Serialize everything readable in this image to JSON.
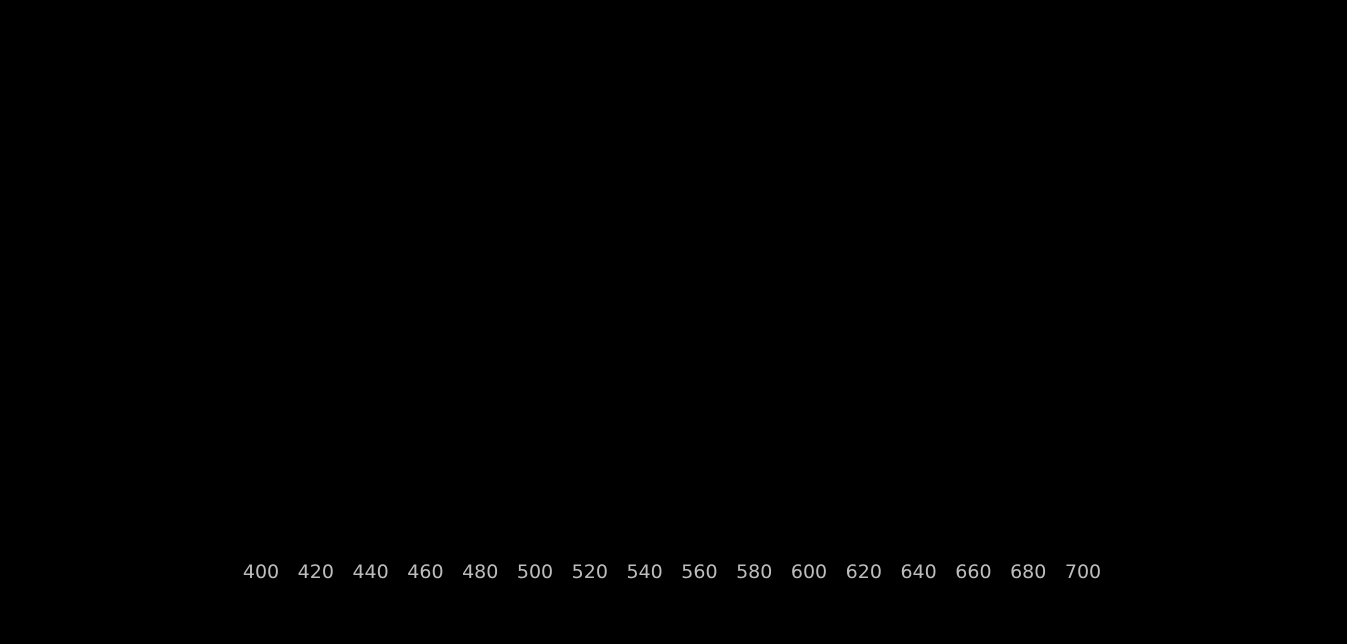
{
  "colors": {
    "background": "#000000",
    "gridline": "#8a8a8a",
    "axis_line": "#d9d9d9",
    "tick_label": "#bdbdbd"
  },
  "chart_data": {
    "type": "line",
    "title": "",
    "xlabel": "",
    "ylabel": "",
    "x_ticks": [
      400,
      420,
      440,
      460,
      480,
      500,
      520,
      540,
      560,
      580,
      600,
      620,
      640,
      660,
      680,
      700
    ],
    "xlim": [
      400,
      700
    ],
    "grid": "vertical",
    "series": []
  }
}
